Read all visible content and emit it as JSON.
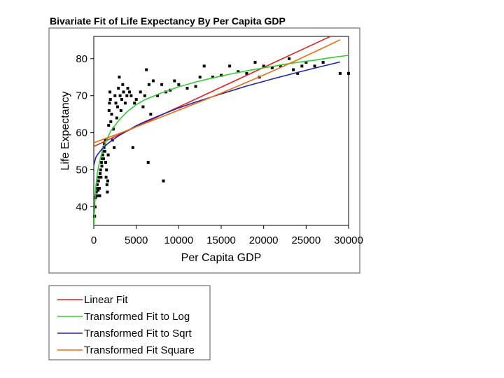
{
  "chart_data": {
    "type": "scatter",
    "title": "Bivariate Fit of Life Expectancy By Per Capita GDP",
    "xlabel": "Per Capita GDP",
    "ylabel": "Life Expectancy",
    "xlim": [
      0,
      30000
    ],
    "ylim": [
      35,
      86
    ],
    "xticks": [
      0,
      5000,
      10000,
      15000,
      20000,
      25000,
      30000
    ],
    "xtick_labels": [
      "0",
      "5000",
      "10000",
      "15000",
      "20000",
      "25000",
      "30000"
    ],
    "yticks": [
      40,
      50,
      60,
      70,
      80
    ],
    "ytick_labels": [
      "40",
      "50",
      "60",
      "70",
      "80"
    ],
    "grid": false,
    "points": [
      [
        100,
        37.5
      ],
      [
        150,
        40
      ],
      [
        200,
        42.5
      ],
      [
        250,
        43
      ],
      [
        300,
        44
      ],
      [
        350,
        45
      ],
      [
        400,
        46
      ],
      [
        450,
        43
      ],
      [
        500,
        44.5
      ],
      [
        550,
        47
      ],
      [
        600,
        48
      ],
      [
        650,
        45
      ],
      [
        700,
        43
      ],
      [
        750,
        49
      ],
      [
        800,
        50
      ],
      [
        850,
        48
      ],
      [
        900,
        52
      ],
      [
        950,
        51
      ],
      [
        1000,
        53
      ],
      [
        1050,
        54
      ],
      [
        1100,
        55
      ],
      [
        1150,
        53
      ],
      [
        1200,
        56
      ],
      [
        1250,
        57
      ],
      [
        1300,
        55
      ],
      [
        1350,
        58
      ],
      [
        1400,
        52
      ],
      [
        1450,
        48
      ],
      [
        1500,
        50
      ],
      [
        1550,
        46
      ],
      [
        1600,
        44
      ],
      [
        1650,
        47
      ],
      [
        1700,
        54
      ],
      [
        1750,
        62
      ],
      [
        1800,
        66
      ],
      [
        1850,
        68
      ],
      [
        1900,
        71
      ],
      [
        1950,
        69
      ],
      [
        2000,
        63
      ],
      [
        2100,
        65
      ],
      [
        2200,
        58
      ],
      [
        2300,
        61
      ],
      [
        2400,
        56
      ],
      [
        2500,
        70
      ],
      [
        2600,
        68
      ],
      [
        2700,
        64
      ],
      [
        2800,
        67
      ],
      [
        2900,
        72
      ],
      [
        3000,
        75
      ],
      [
        3100,
        70
      ],
      [
        3200,
        66
      ],
      [
        3300,
        69
      ],
      [
        3400,
        73
      ],
      [
        3500,
        71
      ],
      [
        3700,
        68
      ],
      [
        3900,
        70
      ],
      [
        4000,
        72
      ],
      [
        4200,
        71
      ],
      [
        4400,
        70
      ],
      [
        4600,
        56
      ],
      [
        4800,
        68
      ],
      [
        5000,
        69
      ],
      [
        5500,
        71
      ],
      [
        5800,
        67
      ],
      [
        6000,
        70
      ],
      [
        6200,
        77
      ],
      [
        6400,
        52
      ],
      [
        6500,
        73
      ],
      [
        6700,
        65
      ],
      [
        7000,
        74
      ],
      [
        7500,
        70
      ],
      [
        8000,
        73
      ],
      [
        8200,
        47
      ],
      [
        8500,
        71
      ],
      [
        9000,
        71.5
      ],
      [
        9500,
        74
      ],
      [
        10000,
        73
      ],
      [
        11000,
        72
      ],
      [
        12000,
        72.5
      ],
      [
        12500,
        75
      ],
      [
        13000,
        78
      ],
      [
        14000,
        75
      ],
      [
        15000,
        75.5
      ],
      [
        16000,
        78
      ],
      [
        17000,
        76.5
      ],
      [
        18000,
        76
      ],
      [
        19000,
        79
      ],
      [
        19500,
        75
      ],
      [
        20000,
        78
      ],
      [
        21000,
        77.5
      ],
      [
        22000,
        78
      ],
      [
        23000,
        80
      ],
      [
        23500,
        77
      ],
      [
        24000,
        76
      ],
      [
        24500,
        78
      ],
      [
        25000,
        79
      ],
      [
        26000,
        78
      ],
      [
        27000,
        79
      ],
      [
        29000,
        76
      ],
      [
        30000,
        76
      ]
    ],
    "series": [
      {
        "name": "Linear Fit",
        "color": "#e0221e",
        "x": [
          0,
          3000,
          6000,
          9000,
          12000,
          15000,
          18000,
          21000,
          24000,
          27000,
          29000
        ],
        "y": [
          56.3,
          59.5,
          62.7,
          65.9,
          69.1,
          72.3,
          75.5,
          78.7,
          81.9,
          85.1,
          87.2
        ]
      },
      {
        "name": "Transformed Fit to Log",
        "color": "#33cc33",
        "x": [
          0,
          200,
          400,
          700,
          1000,
          1500,
          2000,
          3000,
          4000,
          5000,
          6000,
          8000,
          10000,
          12000,
          14000,
          16000,
          18000,
          20000,
          22000,
          24000,
          26000,
          28000,
          30000
        ],
        "y": [
          35,
          44.5,
          49,
          52.5,
          55,
          58,
          60.5,
          63.5,
          65.8,
          67.6,
          68.9,
          70.8,
          72.4,
          73.7,
          74.8,
          75.8,
          76.7,
          77.5,
          78.3,
          79,
          79.6,
          80.3,
          80.9
        ]
      },
      {
        "name": "Transformed Fit to Sqrt",
        "color": "#2222aa",
        "x": [
          0,
          250,
          500,
          1000,
          1500,
          2000,
          3000,
          4000,
          5000,
          6000,
          8000,
          10000,
          12000,
          15000,
          18000,
          21000,
          24000,
          27000,
          29000
        ],
        "y": [
          51.2,
          53.4,
          54.3,
          55.7,
          56.8,
          57.7,
          59.3,
          60.6,
          61.9,
          63,
          64.9,
          66.7,
          68.3,
          70.5,
          72.6,
          74.5,
          76.3,
          78,
          79.1
        ]
      },
      {
        "name": "Transformed Fit Square",
        "color": "#ee6b10",
        "x": [
          0,
          3000,
          6000,
          9000,
          12000,
          15000,
          18000,
          21000,
          24000,
          27000,
          29000
        ],
        "y": [
          57.3,
          59.8,
          62.5,
          65.2,
          67.9,
          70.7,
          73.6,
          76.6,
          79.7,
          82.9,
          85.1
        ]
      }
    ],
    "legend": {
      "position": "bottom-left-outside",
      "entries": [
        "Linear Fit",
        "Transformed Fit to Log",
        "Transformed Fit to Sqrt",
        "Transformed Fit Square"
      ]
    }
  }
}
